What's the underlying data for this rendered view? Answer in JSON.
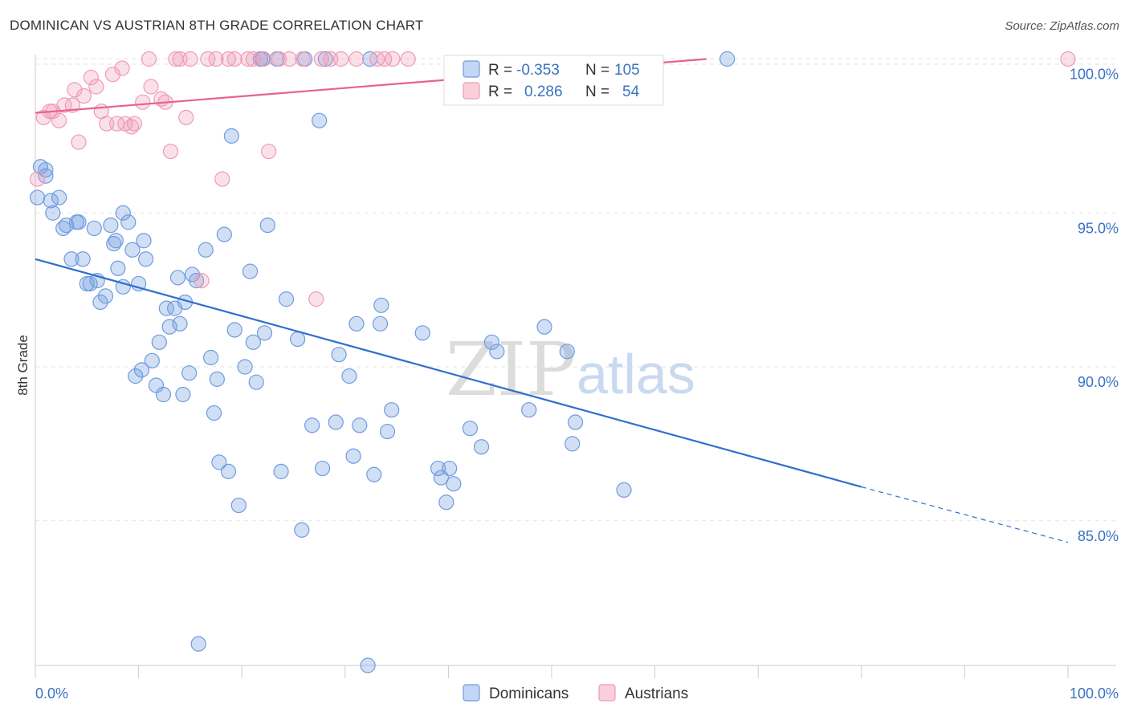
{
  "title": "DOMINICAN VS AUSTRIAN 8TH GRADE CORRELATION CHART",
  "source": "Source: ZipAtlas.com",
  "watermark": {
    "zip": "ZIP",
    "atlas": "atlas"
  },
  "legend_box": {
    "rows": [
      {
        "r_label": "R =",
        "r_value": "-0.353",
        "n_label": "N =",
        "n_value": "105",
        "color": "#6f9be0"
      },
      {
        "r_label": "R =",
        "r_value": "0.286",
        "n_label": "N =",
        "n_value": "54",
        "color": "#f09ab5"
      }
    ]
  },
  "bottom_legend": [
    {
      "label": "Dominicans",
      "color": "#6f9be0"
    },
    {
      "label": "Austrians",
      "color": "#f09ab5"
    }
  ],
  "chart_data": {
    "type": "scatter",
    "title": "DOMINICAN VS AUSTRIAN 8TH GRADE CORRELATION CHART",
    "xlabel": "",
    "ylabel": "8th Grade",
    "xlim": [
      0,
      100
    ],
    "ylim": [
      80.3,
      100.3
    ],
    "x_tick_labels": [
      "0.0%",
      "100.0%"
    ],
    "y_ticks": [
      85,
      90,
      95,
      100
    ],
    "y_tick_labels": [
      "85.0%",
      "90.0%",
      "95.0%",
      "100.0%"
    ],
    "grid": true,
    "legend_position": "top-center",
    "series": [
      {
        "name": "Dominicans",
        "color": "#6f9be0",
        "line_color": "#2f6fce",
        "r": -0.353,
        "n": 105,
        "trend": {
          "x0": 0,
          "y0": 93.5,
          "x1": 80,
          "y1": 86.1,
          "dashed_to_x": 100,
          "dashed_to_y": 84.3
        },
        "points": [
          [
            0.2,
            95.5
          ],
          [
            0.5,
            96.5
          ],
          [
            1,
            96.2
          ],
          [
            1,
            96.4
          ],
          [
            1.5,
            95.4
          ],
          [
            1.7,
            95
          ],
          [
            2.3,
            95.5
          ],
          [
            2.7,
            94.5
          ],
          [
            3,
            94.6
          ],
          [
            3.5,
            93.5
          ],
          [
            4,
            94.7
          ],
          [
            4.2,
            94.7
          ],
          [
            4.6,
            93.5
          ],
          [
            5,
            92.7
          ],
          [
            5.3,
            92.7
          ],
          [
            5.7,
            94.5
          ],
          [
            6,
            92.8
          ],
          [
            6.3,
            92.1
          ],
          [
            6.8,
            92.3
          ],
          [
            7.3,
            94.6
          ],
          [
            7.6,
            94
          ],
          [
            7.8,
            94.1
          ],
          [
            8,
            93.2
          ],
          [
            8.5,
            95
          ],
          [
            8.5,
            92.6
          ],
          [
            9,
            94.7
          ],
          [
            9.4,
            93.8
          ],
          [
            9.7,
            89.7
          ],
          [
            10,
            92.7
          ],
          [
            10.3,
            89.9
          ],
          [
            10.5,
            94.1
          ],
          [
            10.7,
            93.5
          ],
          [
            11.3,
            90.2
          ],
          [
            11.7,
            89.4
          ],
          [
            12,
            90.8
          ],
          [
            12.4,
            89.1
          ],
          [
            12.7,
            91.9
          ],
          [
            13,
            91.3
          ],
          [
            13.5,
            91.9
          ],
          [
            13.8,
            92.9
          ],
          [
            14,
            91.4
          ],
          [
            14.3,
            89.1
          ],
          [
            14.5,
            92.1
          ],
          [
            14.9,
            89.8
          ],
          [
            15.2,
            93
          ],
          [
            15.6,
            92.8
          ],
          [
            15.8,
            81
          ],
          [
            16.5,
            93.8
          ],
          [
            17,
            90.3
          ],
          [
            17.3,
            88.5
          ],
          [
            17.6,
            89.6
          ],
          [
            17.8,
            86.9
          ],
          [
            18.3,
            94.3
          ],
          [
            18.7,
            86.6
          ],
          [
            19,
            97.5
          ],
          [
            19.3,
            91.2
          ],
          [
            19.7,
            85.5
          ],
          [
            20.3,
            90
          ],
          [
            20.8,
            93.1
          ],
          [
            21.1,
            90.8
          ],
          [
            21.4,
            89.5
          ],
          [
            21.8,
            100
          ],
          [
            22,
            100
          ],
          [
            22.2,
            91.1
          ],
          [
            22.5,
            94.6
          ],
          [
            23.4,
            100
          ],
          [
            23.8,
            86.6
          ],
          [
            24.3,
            92.2
          ],
          [
            25.4,
            90.9
          ],
          [
            25.8,
            84.7
          ],
          [
            26.1,
            100
          ],
          [
            26.8,
            88.1
          ],
          [
            27.5,
            98
          ],
          [
            27.8,
            86.7
          ],
          [
            28.1,
            100
          ],
          [
            29.1,
            88.2
          ],
          [
            29.4,
            90.4
          ],
          [
            30.4,
            89.7
          ],
          [
            30.8,
            87.1
          ],
          [
            31.1,
            91.4
          ],
          [
            31.4,
            88.1
          ],
          [
            32.2,
            80.3
          ],
          [
            32.4,
            100
          ],
          [
            32.8,
            86.5
          ],
          [
            33.4,
            91.4
          ],
          [
            33.5,
            92
          ],
          [
            34.1,
            87.9
          ],
          [
            34.5,
            88.6
          ],
          [
            37.5,
            91.1
          ],
          [
            39,
            86.7
          ],
          [
            39.3,
            86.4
          ],
          [
            39.8,
            85.6
          ],
          [
            40.1,
            86.7
          ],
          [
            40.5,
            86.2
          ],
          [
            42.1,
            88
          ],
          [
            43.2,
            87.4
          ],
          [
            44.2,
            90.8
          ],
          [
            44.7,
            90.5
          ],
          [
            47.8,
            88.6
          ],
          [
            49.3,
            91.3
          ],
          [
            51.5,
            90.5
          ],
          [
            52,
            87.5
          ],
          [
            52.3,
            88.2
          ],
          [
            57,
            86
          ],
          [
            67,
            100
          ]
        ]
      },
      {
        "name": "Austrians",
        "color": "#f09ab5",
        "line_color": "#e8628e",
        "r": 0.286,
        "n": 54,
        "trend": {
          "x0": 0,
          "y0": 98.25,
          "x1": 65,
          "y1": 100
        },
        "points": [
          [
            0.2,
            96.1
          ],
          [
            0.8,
            98.1
          ],
          [
            1.4,
            98.3
          ],
          [
            1.7,
            98.3
          ],
          [
            2.3,
            98
          ],
          [
            2.8,
            98.5
          ],
          [
            3.6,
            98.5
          ],
          [
            3.8,
            99
          ],
          [
            4.2,
            97.3
          ],
          [
            4.7,
            98.8
          ],
          [
            5.4,
            99.4
          ],
          [
            5.9,
            99.1
          ],
          [
            6.4,
            98.3
          ],
          [
            6.9,
            97.9
          ],
          [
            7.5,
            99.5
          ],
          [
            7.9,
            97.9
          ],
          [
            8.4,
            99.7
          ],
          [
            8.7,
            97.9
          ],
          [
            9.3,
            97.8
          ],
          [
            9.6,
            97.9
          ],
          [
            10.4,
            98.6
          ],
          [
            11,
            100
          ],
          [
            11.2,
            99.1
          ],
          [
            12.2,
            98.7
          ],
          [
            12.6,
            98.6
          ],
          [
            13.1,
            97
          ],
          [
            13.6,
            100
          ],
          [
            14,
            100
          ],
          [
            14.6,
            98.1
          ],
          [
            15,
            100
          ],
          [
            16.1,
            92.8
          ],
          [
            16.7,
            100
          ],
          [
            17.5,
            100
          ],
          [
            18.1,
            96.1
          ],
          [
            18.7,
            100
          ],
          [
            19.3,
            100
          ],
          [
            20.6,
            100
          ],
          [
            21.1,
            100
          ],
          [
            22.1,
            100
          ],
          [
            22.6,
            97
          ],
          [
            23.6,
            100
          ],
          [
            24.6,
            100
          ],
          [
            25.9,
            100
          ],
          [
            27.2,
            92.2
          ],
          [
            27.7,
            100
          ],
          [
            28.6,
            100
          ],
          [
            29.6,
            100
          ],
          [
            31.1,
            100
          ],
          [
            33.1,
            100
          ],
          [
            33.8,
            100
          ],
          [
            34.6,
            100
          ],
          [
            36.1,
            100
          ],
          [
            52.7,
            98.8
          ],
          [
            100,
            100
          ]
        ]
      }
    ]
  }
}
